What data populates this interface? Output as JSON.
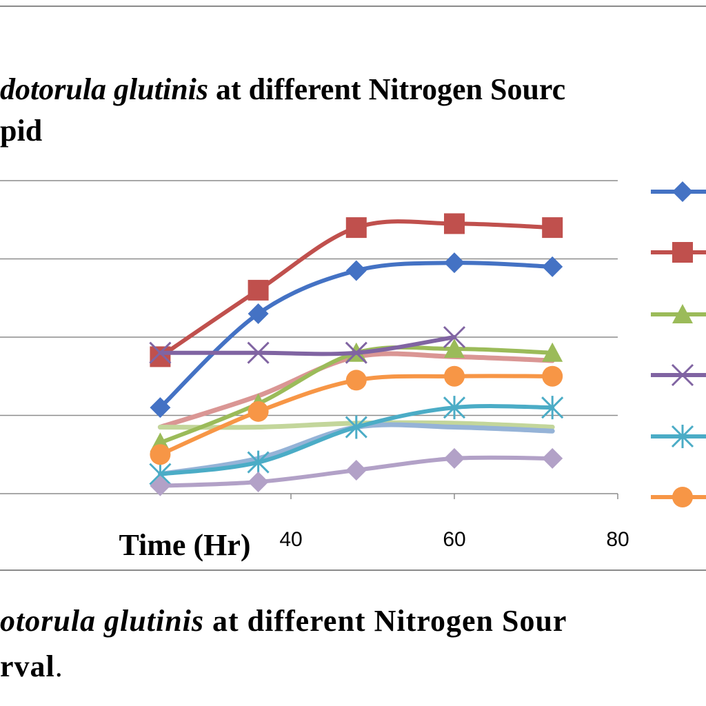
{
  "title": {
    "line1_italic": "dotorula glutinis",
    "line1_rest": " at different Nitrogen Sourc",
    "line2": "pid"
  },
  "caption": {
    "line1_italic": "otorula glutinis",
    "line1_rest": " at different Nitrogen Sour",
    "line2": "rval",
    "line2_end": "."
  },
  "chart_data": {
    "type": "line",
    "xlabel": "Time (Hr)",
    "xlim": [
      0,
      80
    ],
    "ylim": [
      0,
      4
    ],
    "x_ticks": [
      "40",
      "60",
      "80"
    ],
    "x_tick_values": [
      40,
      60,
      80
    ],
    "gridlines_y": [
      1,
      2,
      3,
      4
    ],
    "grid": true,
    "legend": "right",
    "series": [
      {
        "color": "#4472C4",
        "marker": "diamond",
        "x": [
          24,
          36,
          48,
          60,
          72
        ],
        "y": [
          1.1,
          2.3,
          2.85,
          2.95,
          2.9
        ]
      },
      {
        "color": "#C0504D",
        "marker": "square",
        "x": [
          24,
          36,
          48,
          60,
          72
        ],
        "y": [
          1.75,
          2.6,
          3.4,
          3.45,
          3.4
        ]
      },
      {
        "color": "#9BBB59",
        "marker": "triangle",
        "x": [
          24,
          36,
          48,
          60,
          72
        ],
        "y": [
          0.65,
          1.15,
          1.8,
          1.85,
          1.8
        ]
      },
      {
        "color": "#8064A2",
        "marker": "x",
        "x": [
          24,
          36,
          48,
          60,
          72
        ],
        "y": [
          1.8,
          1.8,
          1.8,
          2.0,
          null
        ]
      },
      {
        "color": "#4BACC6",
        "marker": "asterisk",
        "x": [
          24,
          36,
          48,
          60,
          72
        ],
        "y": [
          0.25,
          0.4,
          0.85,
          1.1,
          1.1
        ]
      },
      {
        "color": "#F79646",
        "marker": "circle",
        "x": [
          24,
          36,
          48,
          60,
          72
        ],
        "y": [
          0.5,
          1.05,
          1.45,
          1.5,
          1.5
        ]
      },
      {
        "color": "#DA9694",
        "marker": "none",
        "x": [
          24,
          36,
          48,
          60,
          72
        ],
        "y": [
          0.85,
          1.25,
          1.75,
          1.75,
          1.7
        ]
      },
      {
        "color": "#C3D69B",
        "marker": "none",
        "x": [
          24,
          36,
          48,
          60,
          72
        ],
        "y": [
          0.85,
          0.85,
          0.9,
          0.9,
          0.85
        ]
      },
      {
        "color": "#95B3D7",
        "marker": "none",
        "x": [
          24,
          36,
          48,
          60,
          72
        ],
        "y": [
          0.25,
          0.45,
          0.85,
          0.85,
          0.8
        ]
      },
      {
        "color": "#B2A1C7",
        "marker": "diamond",
        "x": [
          24,
          36,
          48,
          60,
          72
        ],
        "y": [
          0.1,
          0.15,
          0.3,
          0.45,
          0.45
        ]
      }
    ],
    "legend_entries": [
      {
        "color": "#4472C4",
        "marker": "diamond"
      },
      {
        "color": "#C0504D",
        "marker": "square"
      },
      {
        "color": "#9BBB59",
        "marker": "triangle"
      },
      {
        "color": "#8064A2",
        "marker": "x"
      },
      {
        "color": "#4BACC6",
        "marker": "asterisk"
      },
      {
        "color": "#F79646",
        "marker": "circle"
      }
    ]
  }
}
